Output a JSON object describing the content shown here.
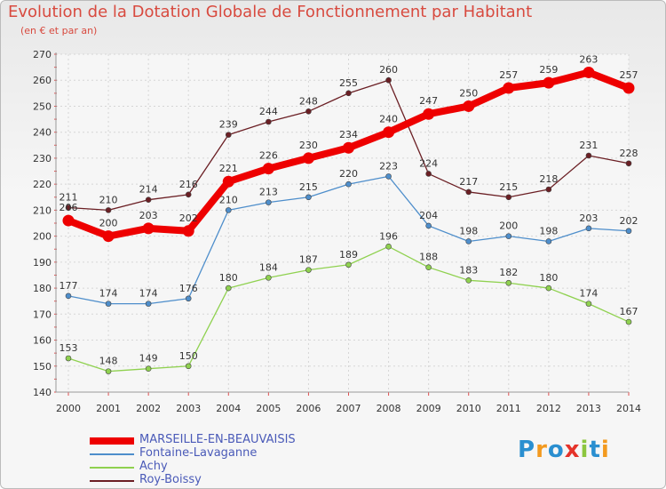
{
  "title": "Evolution de la Dotation Globale de Fonctionnement par Habitant",
  "subtitle": "(en € et par an)",
  "logo": "Proxiti",
  "chart_data": {
    "type": "line",
    "title": "Evolution de la Dotation Globale de Fonctionnement par Habitant",
    "ylabel": "(en € et par an)",
    "xlabel": "",
    "ylim": [
      140,
      270
    ],
    "yticks": [
      140,
      150,
      160,
      170,
      180,
      190,
      200,
      210,
      220,
      230,
      240,
      250,
      260,
      270
    ],
    "x": [
      "2000",
      "2001",
      "2002",
      "2003",
      "2004",
      "2005",
      "2006",
      "2007",
      "2008",
      "2009",
      "2010",
      "2011",
      "2012",
      "2013",
      "2014"
    ],
    "grid": true,
    "legend_position": "bottom-left",
    "series": [
      {
        "name": "Roy-Boissy",
        "color": "#6b1f24",
        "values": [
          211,
          210,
          214,
          216,
          239,
          244,
          248,
          255,
          260,
          224,
          217,
          215,
          218,
          231,
          228
        ]
      },
      {
        "name": "Fontaine-Lavaganne",
        "color": "#4e8ecb",
        "values": [
          177,
          174,
          174,
          176,
          210,
          213,
          215,
          220,
          223,
          204,
          198,
          200,
          198,
          203,
          202
        ]
      },
      {
        "name": "Achy",
        "color": "#8fd14f",
        "values": [
          153,
          148,
          149,
          150,
          180,
          184,
          187,
          189,
          196,
          188,
          183,
          182,
          180,
          174,
          167
        ]
      },
      {
        "name": "MARSEILLE-EN-BEAUVAISIS",
        "color": "#ee0000",
        "values": [
          206,
          200,
          203,
          202,
          221,
          226,
          230,
          234,
          240,
          247,
          250,
          257,
          259,
          263,
          257
        ]
      }
    ],
    "legend": [
      "MARSEILLE-EN-BEAUVAISIS",
      "Fontaine-Lavaganne",
      "Achy",
      "Roy-Boissy"
    ]
  }
}
